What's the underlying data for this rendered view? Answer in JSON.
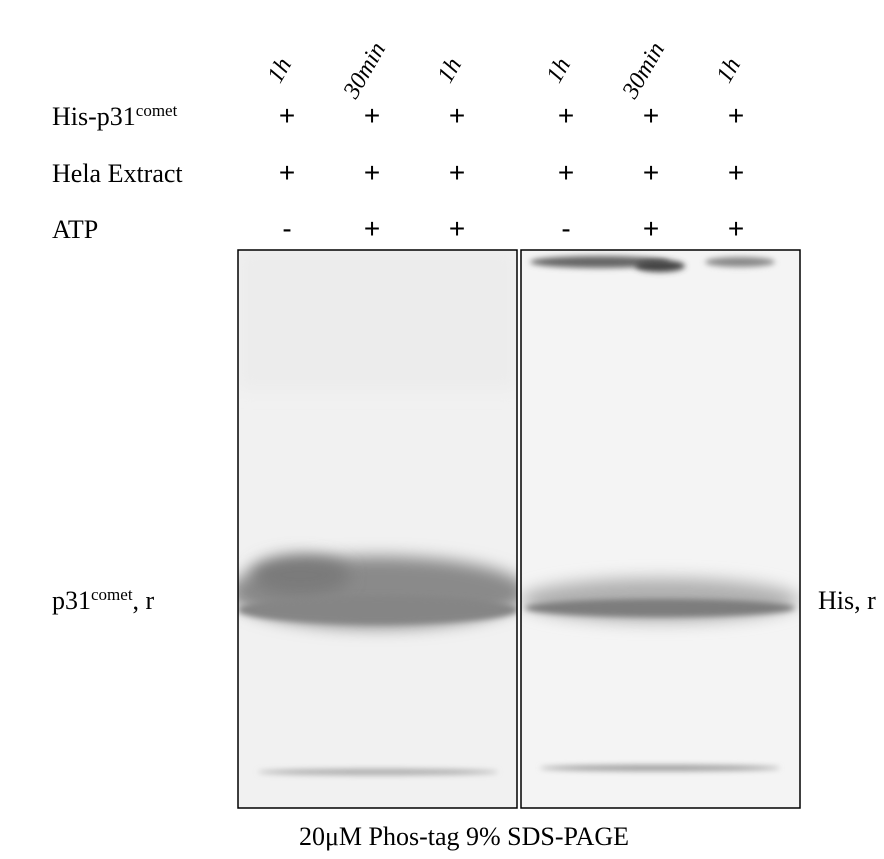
{
  "lanes": [
    "1h",
    "30min",
    "1h",
    "1h",
    "30min",
    "1h"
  ],
  "rows": [
    {
      "label": "His-p31",
      "superscript": "comet",
      "values": [
        "+",
        "+",
        "+",
        "+",
        "+",
        "+"
      ]
    },
    {
      "label": "Hela Extract",
      "values": [
        "+",
        "+",
        "+",
        "+",
        "+",
        "+"
      ]
    },
    {
      "label": "ATP",
      "values": [
        "-",
        "+",
        "+",
        "-",
        "+",
        "+"
      ]
    }
  ],
  "left_label": {
    "text": "p31",
    "superscript": "comet",
    "suffix": ", r"
  },
  "right_label": "His, r",
  "caption": "20μM Phos-tag 9% SDS-PAGE"
}
